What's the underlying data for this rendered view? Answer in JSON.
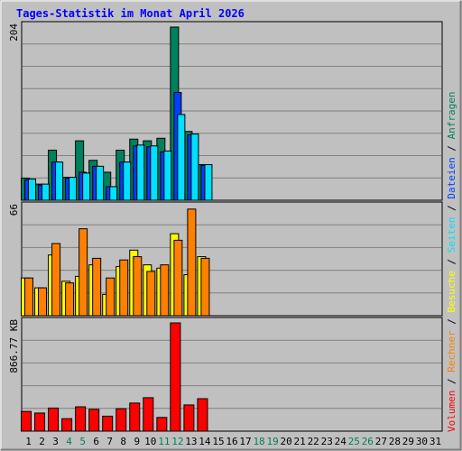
{
  "chart_data": {
    "type": "bar",
    "title": "Tages-Statistik im Monat April 2026",
    "categories": [
      "1",
      "2",
      "3",
      "4",
      "5",
      "6",
      "7",
      "8",
      "9",
      "10",
      "11",
      "12",
      "13",
      "14",
      "15",
      "16",
      "17",
      "18",
      "19",
      "20",
      "21",
      "22",
      "23",
      "24",
      "25",
      "26",
      "27",
      "28",
      "29",
      "30",
      "31"
    ],
    "weekend_days": [
      "4",
      "5",
      "11",
      "12",
      "18",
      "19",
      "25",
      "26"
    ],
    "panels": [
      {
        "name": "hits",
        "ylabel": "204",
        "ymax": 204,
        "series": [
          {
            "name": "Anfragen",
            "color": "#00805c",
            "values": [
              26,
              19,
              59,
              27,
              70,
              47,
              33,
              59,
              72,
              70,
              73,
              204,
              81,
              42
            ]
          },
          {
            "name": "Dateien",
            "color": "#0040ff",
            "values": [
              24,
              18,
              45,
              26,
              33,
              40,
              16,
              45,
              64,
              63,
              57,
              127,
              77,
              41
            ]
          },
          {
            "name": "Seiten",
            "color": "#00e0ff",
            "values": [
              25,
              19,
              45,
              27,
              32,
              40,
              16,
              45,
              65,
              64,
              58,
              101,
              78,
              42
            ]
          }
        ]
      },
      {
        "name": "visits",
        "ylabel": "66",
        "ymax": 66,
        "series": [
          {
            "name": "Besuche",
            "color": "#ffff00",
            "values": [
              23,
              17,
              37,
              21,
              24,
              31,
              13,
              30,
              40,
              31,
              29,
              50,
              25,
              36
            ]
          },
          {
            "name": "Rechner",
            "color": "#ff8000",
            "values": [
              23,
              17,
              44,
              20,
              53,
              35,
              23,
              34,
              36,
              27,
              31,
              46,
              65,
              35
            ]
          }
        ]
      },
      {
        "name": "volume",
        "ylabel": "866.77 KB",
        "ymax": 866.77,
        "series": [
          {
            "name": "Volumen",
            "color": "#ff0000",
            "values": [
              158,
              145,
              185,
              100,
              195,
              175,
              120,
              180,
              225,
              268,
              110,
              866.77,
              210,
              260
            ]
          }
        ]
      }
    ],
    "legend": [
      "Volumen",
      "Rechner",
      "Besuche",
      "Seiten",
      "Dateien",
      "Anfragen"
    ],
    "legend_separator": "/",
    "colors": {
      "background": "#c0c0c0",
      "title": "#0000ff",
      "weekday_label": "#000000",
      "weekend_label": "#00805c",
      "grid": "#808080"
    }
  }
}
